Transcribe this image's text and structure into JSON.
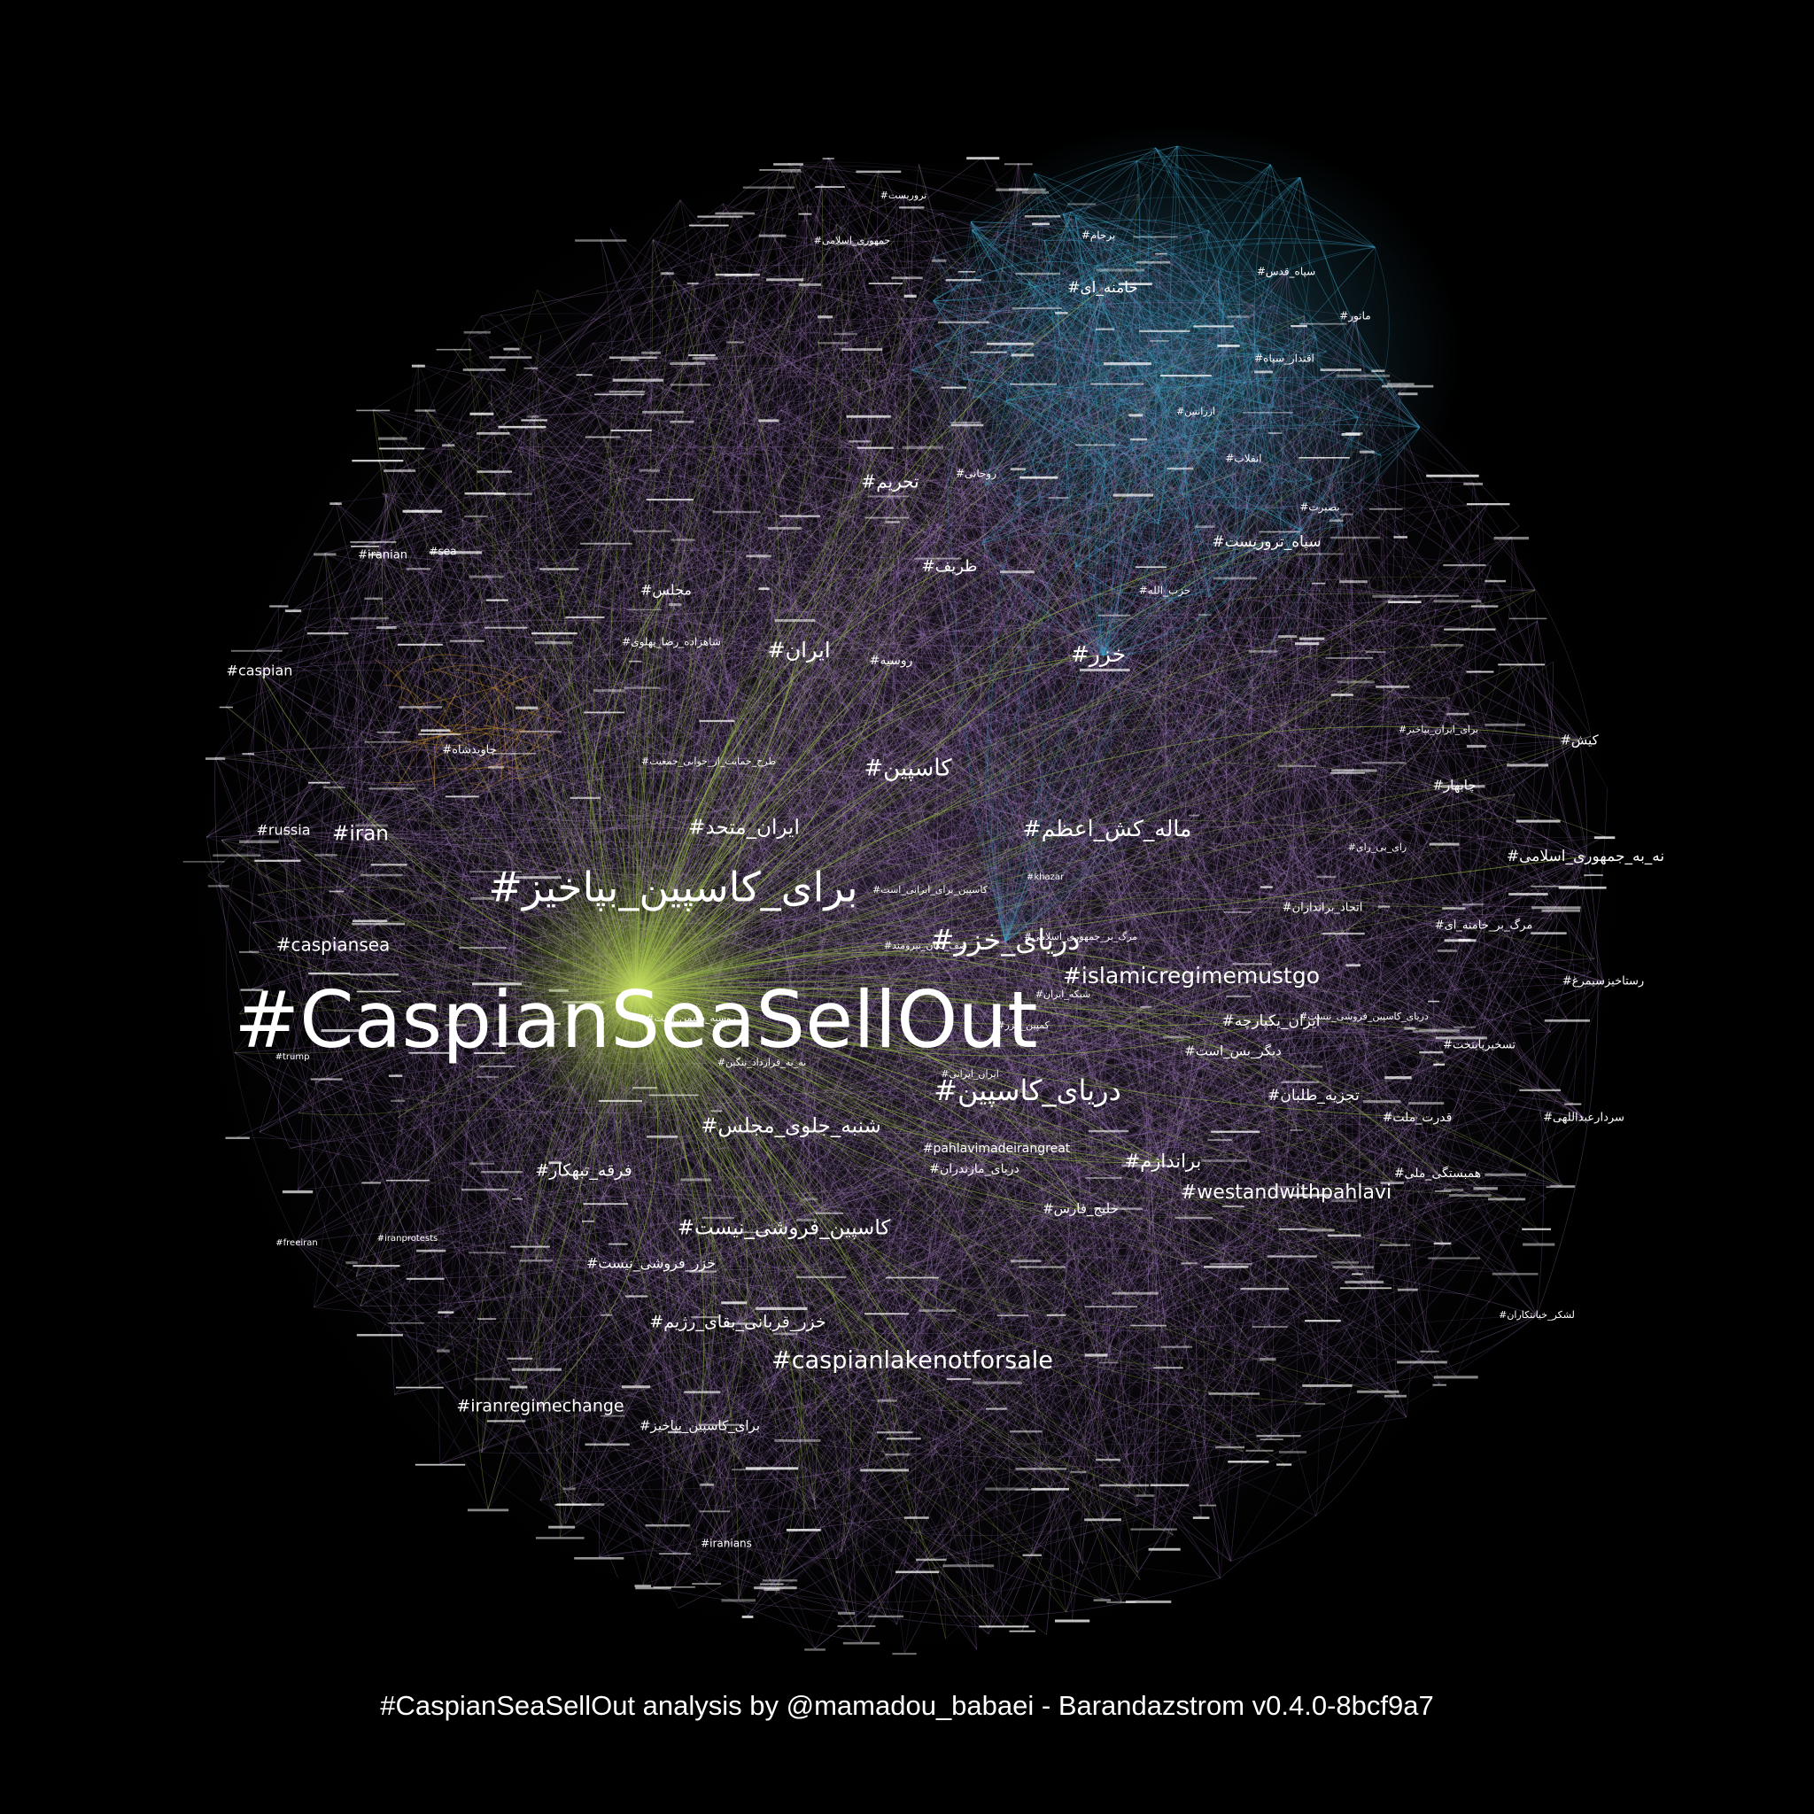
{
  "colors": {
    "background": "#000000",
    "label": "#ffffff",
    "edge_purple": "#b58bd6",
    "edge_green": "#9ec24a",
    "edge_blue": "#3fa3c9",
    "edge_orange": "#c8902c"
  },
  "footer": "#CaspianSeaSellOut analysis by @mamadou_babaei - Barandazstrom v0.4.0-8bcf9a7",
  "diagram": {
    "hub": "#CaspianSeaSellOut",
    "major_labels": [
      "#برای_کاسپین_بپاخیز",
      "#دریای_خزر",
      "#دریای_کاسپین",
      "#islamicregimemustgo",
      "#caspianlakenotforsale",
      "#کاسپین",
      "#ماله_کش_اعظم",
      "#خزر",
      "#ایران",
      "#ایران_متحد",
      "#شنبه_جلوی_مجلس",
      "#کاسپین_فروشی_نیست",
      "#westandwithpahlavi",
      "#iran",
      "#caspiansea",
      "#iranregimechange",
      "#براندازم",
      "#تحریم",
      "#ظریف",
      "#خامنه_ای",
      "#سپاه_تروریست",
      "#نه_به_جمهوری_اسلامی",
      "#ایران_یکپارچه",
      "#تجزیه_طلبان",
      "#خزر_قربانی_بقای_رژیم",
      "#فرقه_تبهکار",
      "#russia",
      "#caspian",
      "#مجلس",
      "#روسیه",
      "#کیش",
      "#چابهار",
      "#دیگر_بس_است",
      "#قدرت_ملت",
      "#همبستگی_ملی",
      "#خلیج_فارس",
      "#pahlavimadeirangreat",
      "#دریای_مازندران",
      "#خزر_فروشی_نیست",
      "#برای_کاسپین_بپاخیز",
      "#iranian",
      "#sea",
      "#جاویدشاه",
      "#شاهزاده_رضا_پهلوی",
      "#سپاه_قدس",
      "#اقتدار_سپاه",
      "#ماتور",
      "#برجام",
      "#روحانی",
      "#سردارعبداللهی",
      "#رستاخیزسیمرغ",
      "#اتحاد_براندازان",
      "#مرگ_بر_خامنه_ای",
      "#تسخیرپایتخت",
      "#iranians",
      "#حزب_الله",
      "#انقلاب",
      "#بصیرت",
      "#تروریست",
      "#جمهوری_اسلامی",
      "#طرح_حمایت_از_جوانی_جمعیت",
      "#صف_تکان_نیرومند",
      "#کاسپین_برای_ایرانی_است",
      "#روسیه_دشمن_است",
      "#نه_به_قرارداد_ننگین",
      "#ایران_ایرانی",
      "#شبکه_ایران",
      "#کمپین_خزر",
      "#دریای_کاسپین_فروشی_نیست",
      "#لشکر_خیانتکاران",
      "#رای_بی_رای",
      "#برای_ایران_بپاخیز",
      "#ارزانتین",
      "#مرگ_بر_جمهوری_اسلامی",
      "#iranprotests",
      "#freeiran",
      "#trump",
      "#khazar"
    ]
  }
}
